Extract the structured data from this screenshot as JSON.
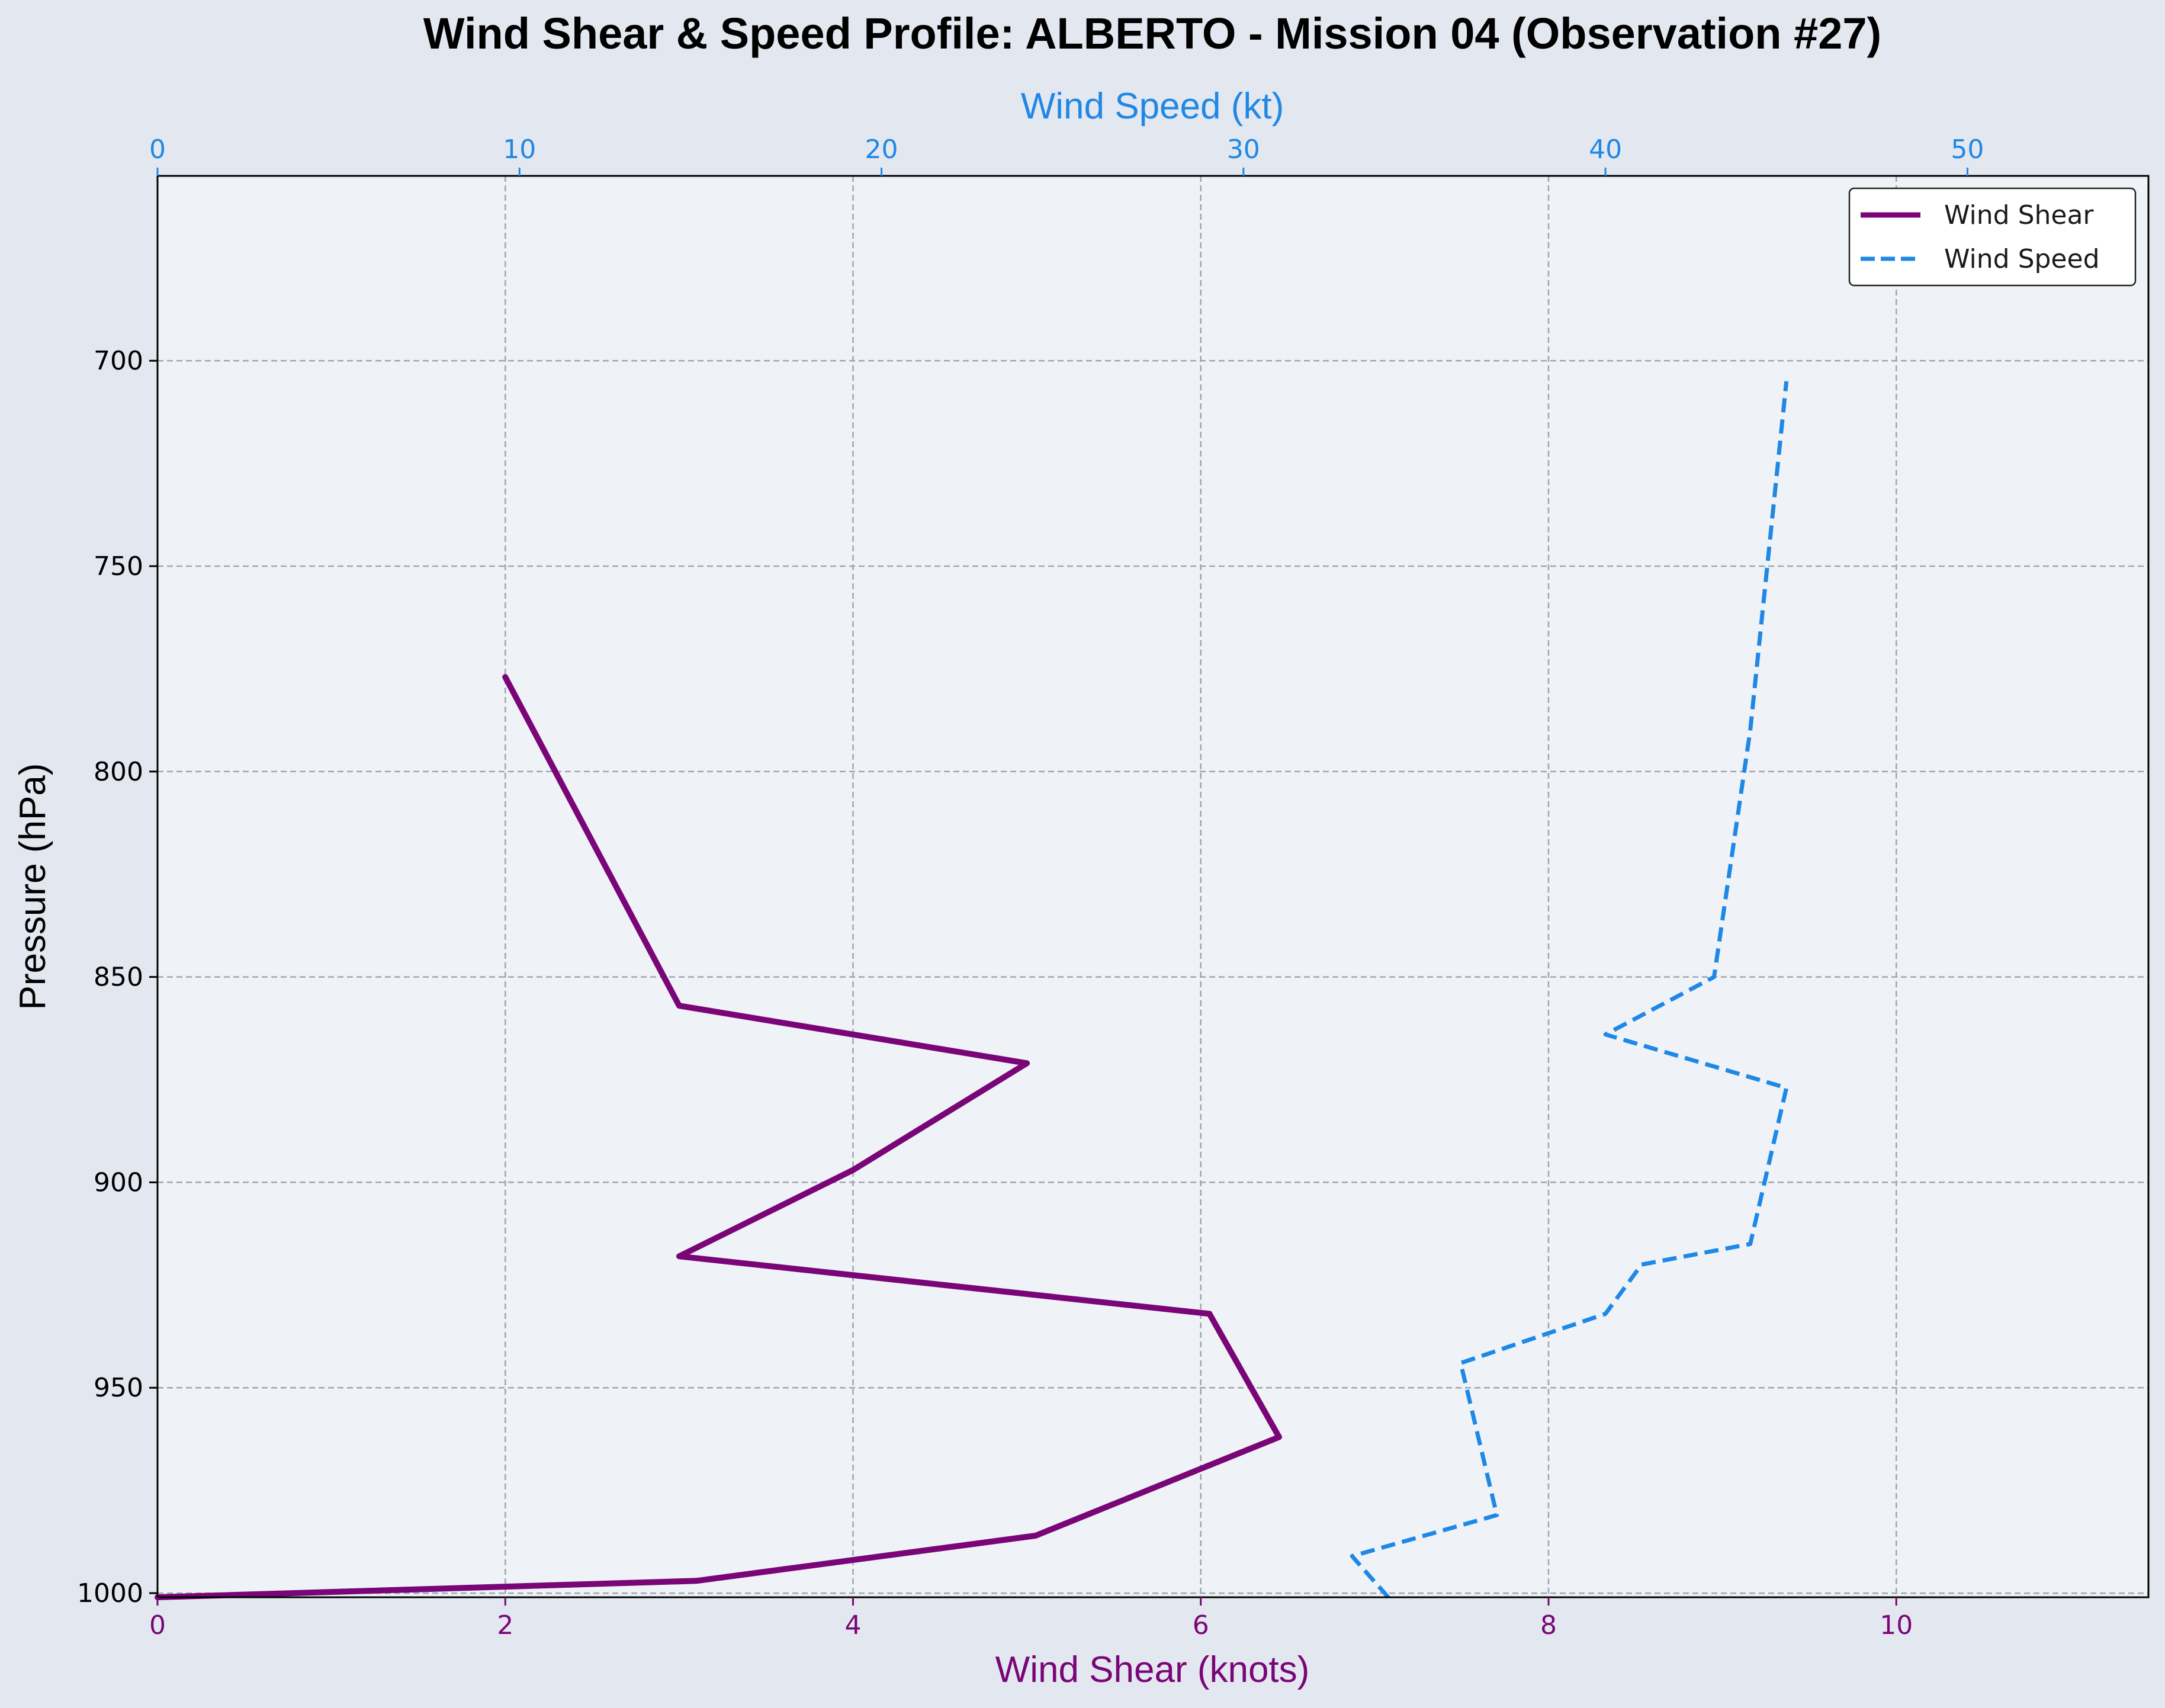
{
  "chart_data": {
    "type": "line",
    "title": "Wind Shear & Speed Profile: ALBERTO - Mission 04 (Observation #27)",
    "ylabel": "Pressure (hPa)",
    "xlabel_bottom": "Wind Shear (knots)",
    "xlabel_top": "Wind Speed (kt)",
    "y_inverted": true,
    "ylim": [
      1001,
      655
    ],
    "yticks": [
      700,
      750,
      800,
      850,
      900,
      950,
      1000
    ],
    "xlim_bottom": [
      0,
      11.45
    ],
    "xticks_bottom": [
      0,
      2,
      4,
      6,
      8,
      10
    ],
    "xlim_top": [
      0,
      55
    ],
    "xticks_top": [
      0,
      10,
      20,
      30,
      40,
      50
    ],
    "grid": true,
    "legend_position": "top-right",
    "colors": {
      "shear": "#7a0577",
      "speed": "#1f88e5",
      "plot_bg": "#eff3f8",
      "figure_bg": "#e3e7f0",
      "grid": "#a0a6ae"
    },
    "series": [
      {
        "name": "Wind Shear",
        "axis": "bottom",
        "style": "solid",
        "points": [
          {
            "x": 0,
            "y": 1001
          },
          {
            "x": 3.1,
            "y": 997
          },
          {
            "x": 5.05,
            "y": 986
          },
          {
            "x": 6.45,
            "y": 962
          },
          {
            "x": 6.05,
            "y": 932
          },
          {
            "x": 3.0,
            "y": 918
          },
          {
            "x": 4.0,
            "y": 897
          },
          {
            "x": 5.0,
            "y": 871
          },
          {
            "x": 3.0,
            "y": 857
          },
          {
            "x": 2.0,
            "y": 777
          }
        ]
      },
      {
        "name": "Wind Speed",
        "axis": "top",
        "style": "dashed",
        "points": [
          {
            "x": 34.0,
            "y": 1001
          },
          {
            "x": 33.0,
            "y": 991
          },
          {
            "x": 37.0,
            "y": 981
          },
          {
            "x": 36.0,
            "y": 944
          },
          {
            "x": 40.0,
            "y": 932
          },
          {
            "x": 41.0,
            "y": 920
          },
          {
            "x": 44.0,
            "y": 915
          },
          {
            "x": 45.0,
            "y": 877
          },
          {
            "x": 40.0,
            "y": 864
          },
          {
            "x": 43.0,
            "y": 850
          },
          {
            "x": 44.0,
            "y": 790
          },
          {
            "x": 45.0,
            "y": 705
          }
        ]
      }
    ]
  }
}
